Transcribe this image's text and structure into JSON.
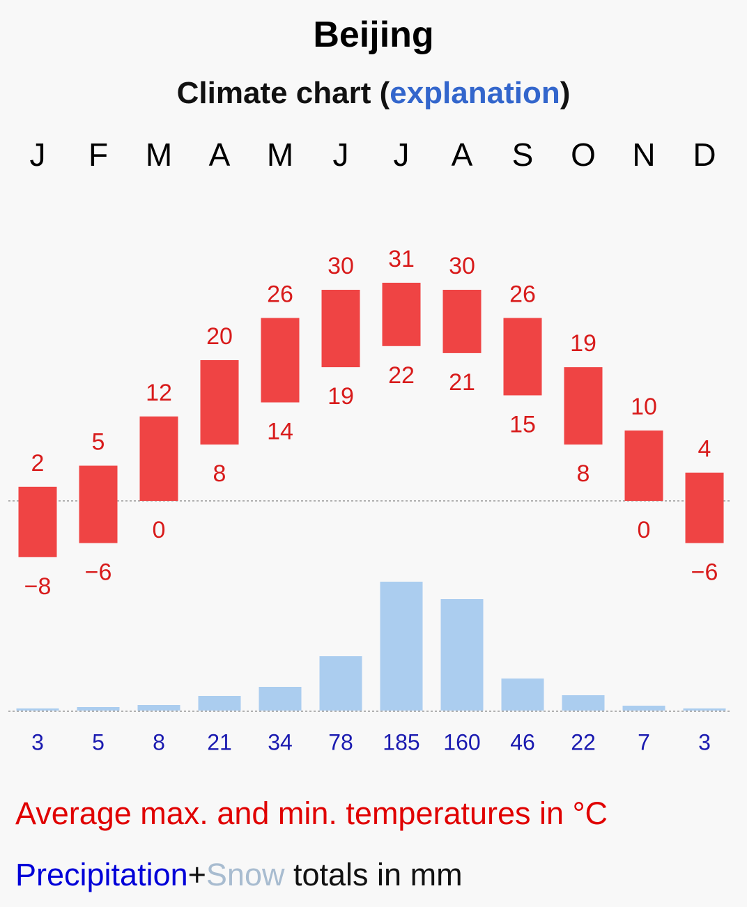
{
  "header": {
    "title": "Beijing",
    "subtitle_prefix": "Climate chart (",
    "subtitle_link": "explanation",
    "subtitle_suffix": ")"
  },
  "legend": {
    "temperature_text": "Average max. and min. temperatures in °C",
    "precip_word": "Precipitation",
    "plus": "+",
    "snow_word": "Snow",
    "totals_text": " totals in mm"
  },
  "colors": {
    "temp_bar": "#ef4444",
    "temp_label": "#d81b1b",
    "precip_bar": "#abcdef",
    "precip_label": "#1a1ab0",
    "axis_dotted": "#b0b0b0"
  },
  "chart_data": {
    "type": "climate",
    "title": "Beijing",
    "subtitle": "Climate chart (explanation)",
    "categories": [
      "J",
      "F",
      "M",
      "A",
      "M",
      "J",
      "J",
      "A",
      "S",
      "O",
      "N",
      "D"
    ],
    "series": [
      {
        "name": "Average max. temperature (°C)",
        "values": [
          2,
          5,
          12,
          20,
          26,
          30,
          31,
          30,
          26,
          19,
          10,
          4
        ]
      },
      {
        "name": "Average min. temperature (°C)",
        "values": [
          -8,
          -6,
          0,
          8,
          14,
          19,
          22,
          21,
          15,
          8,
          0,
          -6
        ]
      },
      {
        "name": "Precipitation (mm)",
        "values": [
          3,
          5,
          8,
          21,
          34,
          78,
          185,
          160,
          46,
          22,
          7,
          3
        ]
      }
    ],
    "max_labels": [
      "2",
      "5",
      "12",
      "20",
      "26",
      "30",
      "31",
      "30",
      "26",
      "19",
      "10",
      "4"
    ],
    "min_labels": [
      "−8",
      "−6",
      "0",
      "8",
      "14",
      "19",
      "22",
      "21",
      "15",
      "8",
      "0",
      "−6"
    ],
    "precip_labels": [
      "3",
      "5",
      "8",
      "21",
      "34",
      "78",
      "185",
      "160",
      "46",
      "22",
      "7",
      "3"
    ],
    "temp_zero_line": 0,
    "precip_baseline": 0
  }
}
